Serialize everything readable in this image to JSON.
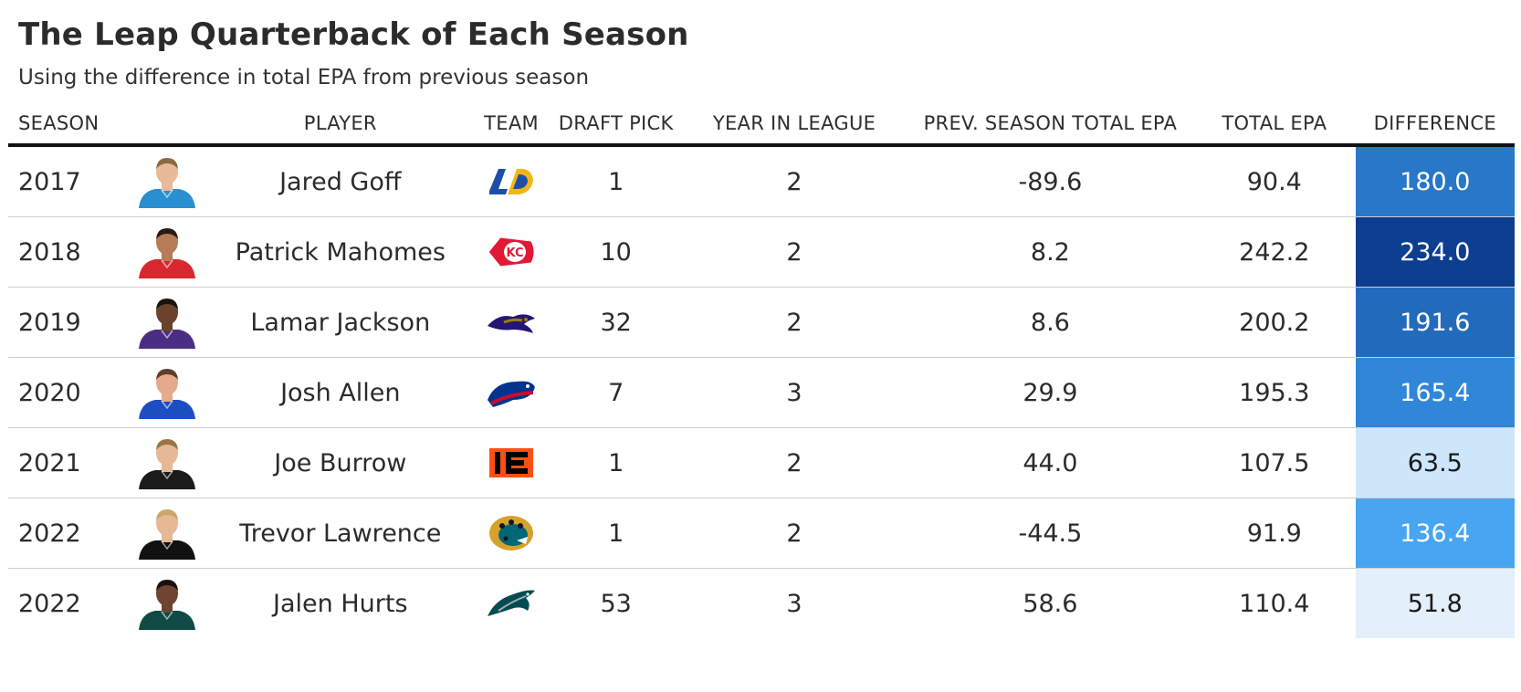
{
  "header": {
    "title": "The Leap Quarterback of Each Season",
    "subtitle": "Using the difference in total EPA from previous season"
  },
  "columns": {
    "season": "SEASON",
    "player": "PLAYER",
    "team": "TEAM",
    "draft_pick": "DRAFT PICK",
    "year_in_league": "YEAR IN LEAGUE",
    "prev_epa": "PREV. SEASON TOTAL EPA",
    "total_epa": "TOTAL EPA",
    "difference": "DIFFERENCE"
  },
  "rows": [
    {
      "season": "2017",
      "player": "Jared Goff",
      "team_icon": "rams-logo-icon",
      "draft_pick": "1",
      "year_in_league": "2",
      "prev_epa": "-89.6",
      "total_epa": "90.4",
      "difference": "180.0",
      "diff_value": 180.0,
      "jersey_color": "#2a8fd0",
      "skin_color": "#e9b998",
      "hair_color": "#8a6a44"
    },
    {
      "season": "2018",
      "player": "Patrick Mahomes",
      "team_icon": "chiefs-logo-icon",
      "draft_pick": "10",
      "year_in_league": "2",
      "prev_epa": "8.2",
      "total_epa": "242.2",
      "difference": "234.0",
      "diff_value": 234.0,
      "jersey_color": "#d7282f",
      "skin_color": "#b57c57",
      "hair_color": "#2a1a10"
    },
    {
      "season": "2019",
      "player": "Lamar Jackson",
      "team_icon": "ravens-logo-icon",
      "draft_pick": "32",
      "year_in_league": "2",
      "prev_epa": "8.6",
      "total_epa": "200.2",
      "difference": "191.6",
      "diff_value": 191.6,
      "jersey_color": "#4b2e83",
      "skin_color": "#6b432c",
      "hair_color": "#1b120c"
    },
    {
      "season": "2020",
      "player": "Josh Allen",
      "team_icon": "bills-logo-icon",
      "draft_pick": "7",
      "year_in_league": "3",
      "prev_epa": "29.9",
      "total_epa": "195.3",
      "difference": "165.4",
      "diff_value": 165.4,
      "jersey_color": "#1c4ec2",
      "skin_color": "#e4ab8a",
      "hair_color": "#5c3f28"
    },
    {
      "season": "2021",
      "player": "Joe Burrow",
      "team_icon": "bengals-logo-icon",
      "draft_pick": "1",
      "year_in_league": "2",
      "prev_epa": "44.0",
      "total_epa": "107.5",
      "difference": "63.5",
      "diff_value": 63.5,
      "jersey_color": "#1b1b1b",
      "skin_color": "#e7b896",
      "hair_color": "#9b7446"
    },
    {
      "season": "2022",
      "player": "Trevor Lawrence",
      "team_icon": "jaguars-logo-icon",
      "draft_pick": "1",
      "year_in_league": "2",
      "prev_epa": "-44.5",
      "total_epa": "91.9",
      "difference": "136.4",
      "diff_value": 136.4,
      "jersey_color": "#111111",
      "skin_color": "#e7b896",
      "hair_color": "#c9a66b"
    },
    {
      "season": "2022",
      "player": "Jalen Hurts",
      "team_icon": "eagles-logo-icon",
      "draft_pick": "53",
      "year_in_league": "3",
      "prev_epa": "58.6",
      "total_epa": "110.4",
      "difference": "51.8",
      "diff_value": 51.8,
      "jersey_color": "#0f4a44",
      "skin_color": "#6e4530",
      "hair_color": "#1a110b"
    }
  ],
  "diff_color_scale": {
    "low": "#e3f0fb",
    "mid": "#3b9ff0",
    "high": "#0d3d8f"
  },
  "chart_data": {
    "type": "table",
    "title": "The Leap Quarterback of Each Season",
    "subtitle": "Using the difference in total EPA from previous season",
    "columns": [
      "SEASON",
      "PLAYER",
      "TEAM",
      "DRAFT PICK",
      "YEAR IN LEAGUE",
      "PREV. SEASON TOTAL EPA",
      "TOTAL EPA",
      "DIFFERENCE"
    ],
    "teams": [
      "Rams",
      "Chiefs",
      "Ravens",
      "Bills",
      "Bengals",
      "Jaguars",
      "Eagles"
    ],
    "values": [
      [
        2017,
        "Jared Goff",
        "Rams",
        1,
        2,
        -89.6,
        90.4,
        180.0
      ],
      [
        2018,
        "Patrick Mahomes",
        "Chiefs",
        10,
        2,
        8.2,
        242.2,
        234.0
      ],
      [
        2019,
        "Lamar Jackson",
        "Ravens",
        32,
        2,
        8.6,
        200.2,
        191.6
      ],
      [
        2020,
        "Josh Allen",
        "Bills",
        7,
        3,
        29.9,
        195.3,
        165.4
      ],
      [
        2021,
        "Joe Burrow",
        "Bengals",
        1,
        2,
        44.0,
        107.5,
        63.5
      ],
      [
        2022,
        "Trevor Lawrence",
        "Jaguars",
        1,
        2,
        -44.5,
        91.9,
        136.4
      ],
      [
        2022,
        "Jalen Hurts",
        "Eagles",
        53,
        3,
        58.6,
        110.4,
        51.8
      ]
    ]
  }
}
